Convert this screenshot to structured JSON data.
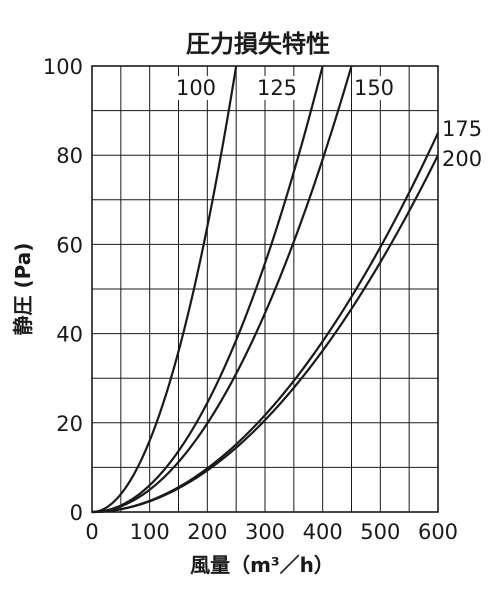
{
  "chart_data": {
    "type": "line",
    "title": "圧力損失特性",
    "xlabel": "風量（m³／h）",
    "ylabel": "静圧 (Pa)",
    "xlim": [
      0,
      600
    ],
    "ylim": [
      0,
      100
    ],
    "xticks": [
      0,
      100,
      200,
      300,
      400,
      500,
      600
    ],
    "yticks": [
      0,
      20,
      40,
      60,
      80,
      100
    ],
    "xtick_labels": [
      "0",
      "100",
      "200",
      "300",
      "400",
      "500",
      "600"
    ],
    "ytick_labels": [
      "0",
      "20",
      "40",
      "60",
      "80",
      "100"
    ],
    "grid": true,
    "series": [
      {
        "name": "100",
        "x": [
          0,
          50,
          100,
          150,
          200,
          230,
          250
        ],
        "y": [
          0,
          4,
          16,
          36,
          64,
          85,
          100
        ]
      },
      {
        "name": "125",
        "x": [
          0,
          100,
          200,
          250,
          300,
          350,
          400
        ],
        "y": [
          0,
          6,
          25,
          39,
          56,
          77,
          100
        ]
      },
      {
        "name": "150",
        "x": [
          0,
          100,
          200,
          250,
          300,
          350,
          400,
          450
        ],
        "y": [
          0,
          5,
          20,
          31,
          45,
          61,
          79,
          100
        ]
      },
      {
        "name": "175",
        "x": [
          0,
          100,
          200,
          300,
          400,
          500,
          600
        ],
        "y": [
          0,
          2.5,
          10,
          22,
          40,
          61,
          85
        ]
      },
      {
        "name": "200",
        "x": [
          0,
          100,
          200,
          300,
          400,
          500,
          600
        ],
        "y": [
          0,
          2.4,
          9.5,
          21,
          37,
          57,
          80
        ]
      }
    ]
  }
}
